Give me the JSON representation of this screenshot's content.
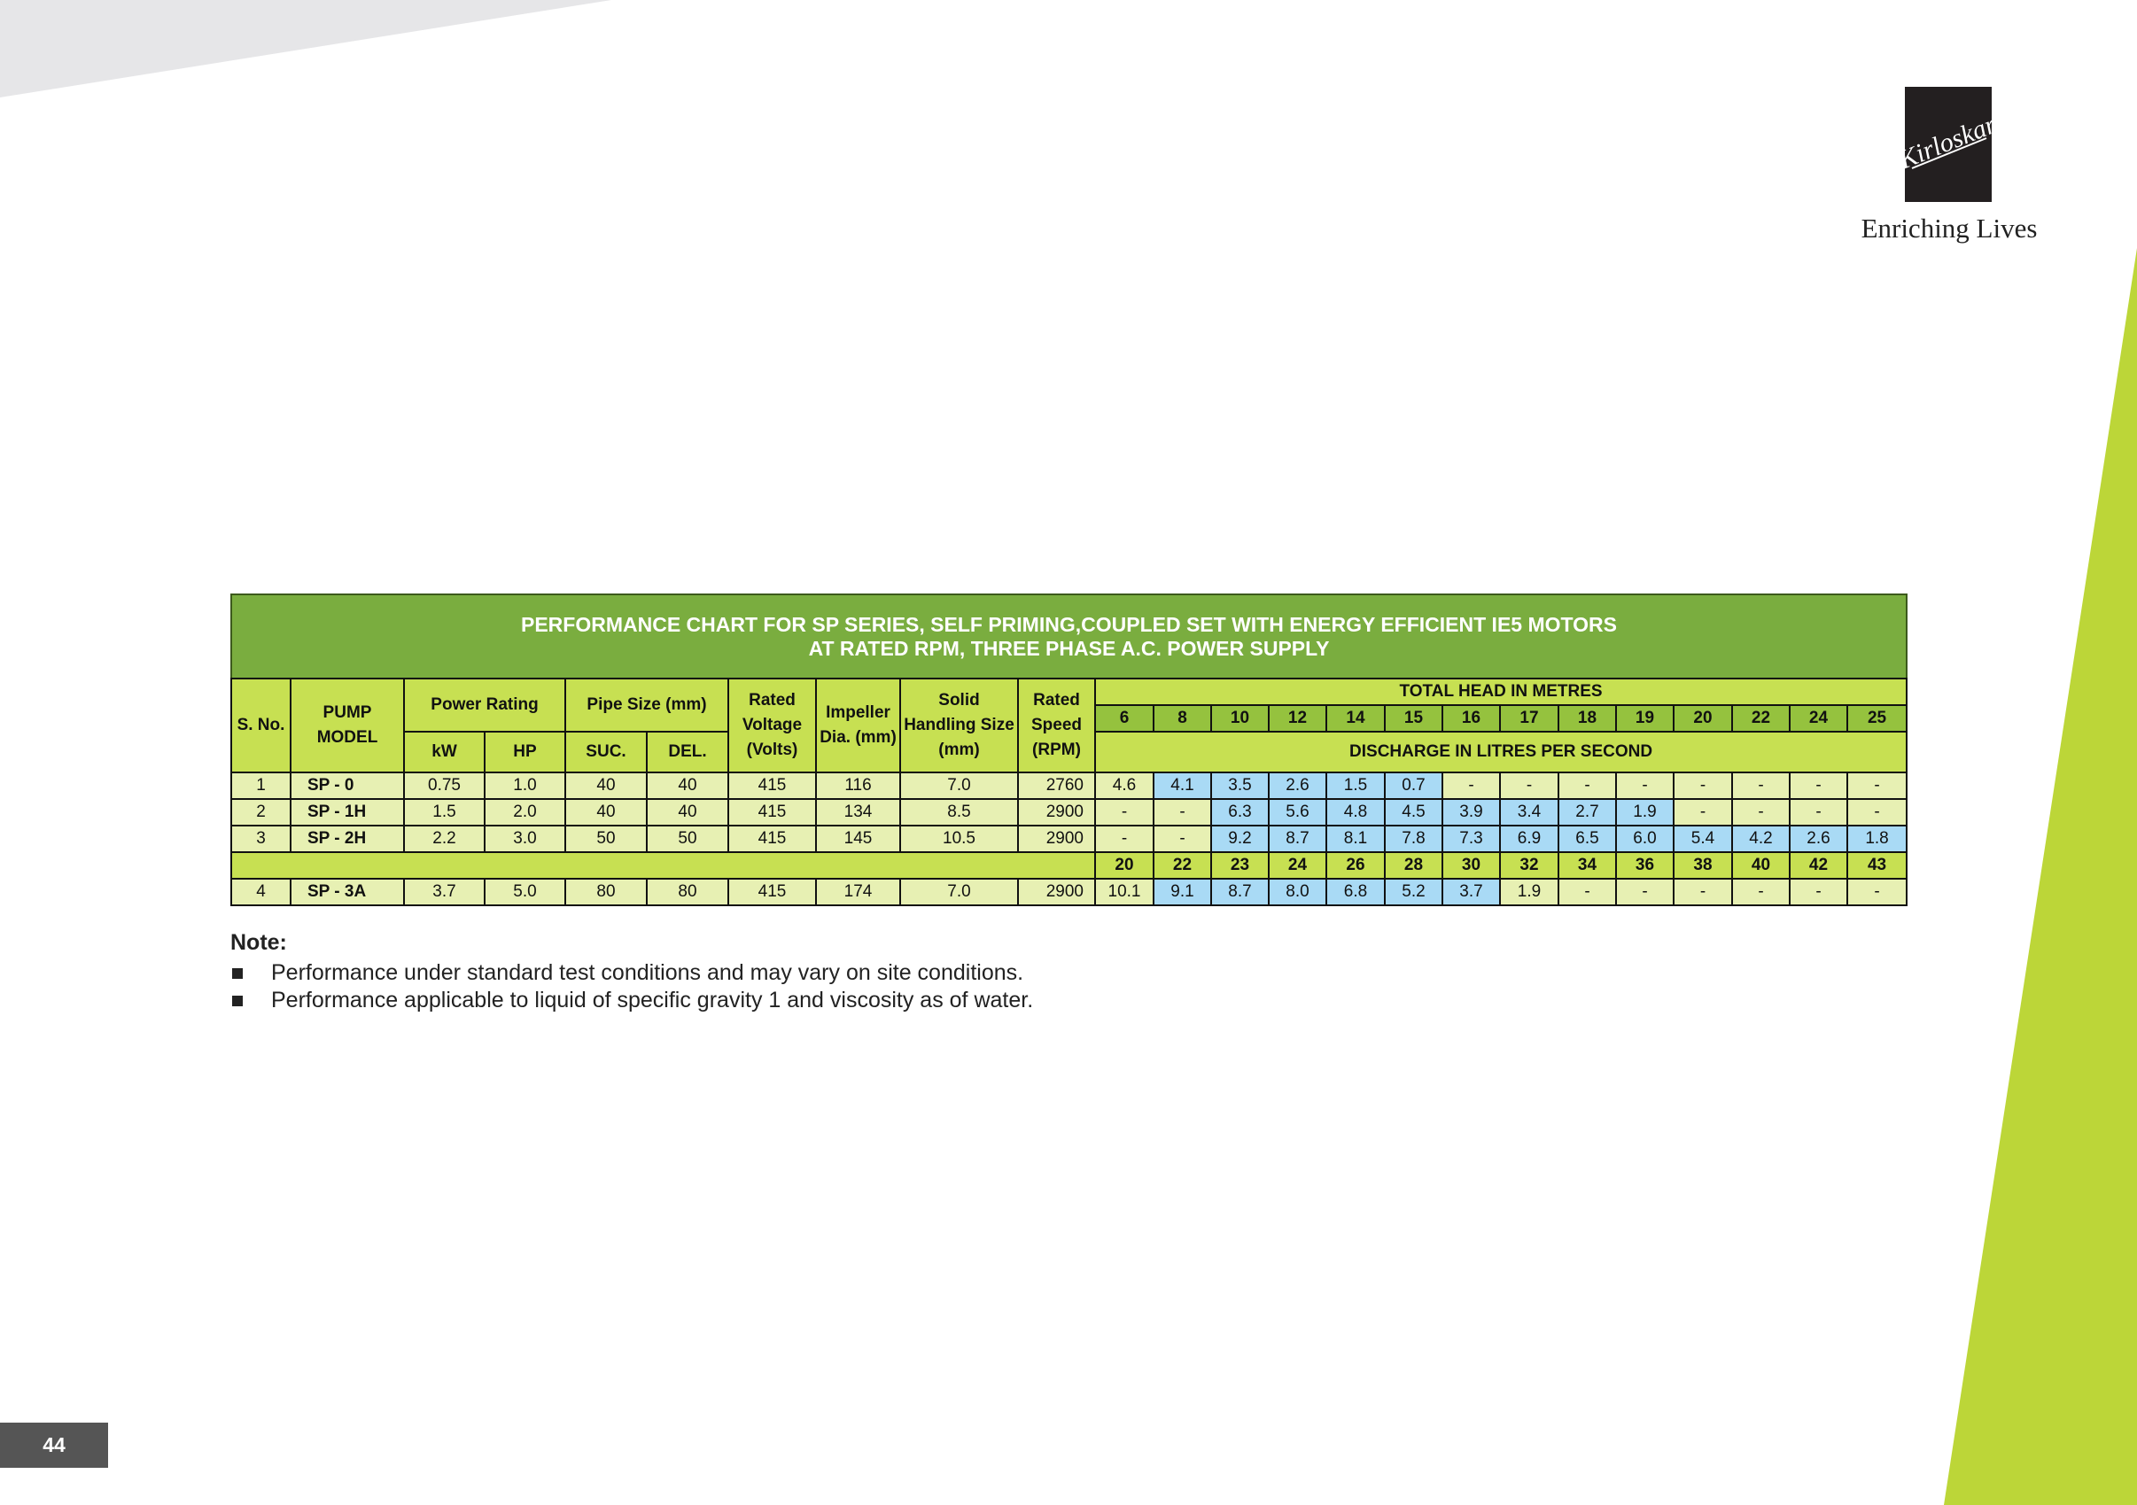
{
  "brand": {
    "logo_text": "Kirloskar",
    "tagline": "Enriching Lives"
  },
  "page_number": "44",
  "colors": {
    "title_green": "#7aad3f",
    "header_lime": "#c7e052",
    "head_green": "#95c23e",
    "cell_cream": "#e7f0b3",
    "highlight_blue": "#a9daf5",
    "deco_lime": "#bcd638"
  },
  "table": {
    "title_line1": "PERFORMANCE CHART FOR SP SERIES, SELF PRIMING,COUPLED SET WITH ENERGY EFFICIENT IE5 MOTORS",
    "title_line2": "AT RATED RPM, THREE PHASE A.C. POWER SUPPLY",
    "headers": {
      "sno": "S. No.",
      "pump_model": "PUMP MODEL",
      "power_rating": "Power Rating",
      "kw": "kW",
      "hp": "HP",
      "pipe_size": "Pipe Size (mm)",
      "suc": "SUC.",
      "del": "DEL.",
      "rated_voltage": "Rated Voltage (Volts)",
      "impeller_dia": "Impeller Dia. (mm)",
      "solid_handling": "Solid Handling Size (mm)",
      "rated_speed": "Rated Speed (RPM)",
      "total_head": "TOTAL HEAD IN METRES",
      "discharge": "DISCHARGE IN LITRES PER SECOND"
    },
    "heads_primary": [
      "6",
      "8",
      "10",
      "12",
      "14",
      "15",
      "16",
      "17",
      "18",
      "19",
      "20",
      "22",
      "24",
      "25"
    ],
    "heads_secondary": [
      "20",
      "22",
      "23",
      "24",
      "26",
      "28",
      "30",
      "32",
      "34",
      "36",
      "38",
      "40",
      "42",
      "43"
    ],
    "rows": [
      {
        "sno": "1",
        "model": "SP - 0",
        "kw": "0.75",
        "hp": "1.0",
        "suc": "40",
        "del": "40",
        "voltage": "415",
        "impeller": "116",
        "solid": "7.0",
        "speed": "2760",
        "discharge": [
          "4.6",
          "4.1",
          "3.5",
          "2.6",
          "1.5",
          "0.7",
          "-",
          "-",
          "-",
          "-",
          "-",
          "-",
          "-",
          "-"
        ]
      },
      {
        "sno": "2",
        "model": "SP - 1H",
        "kw": "1.5",
        "hp": "2.0",
        "suc": "40",
        "del": "40",
        "voltage": "415",
        "impeller": "134",
        "solid": "8.5",
        "speed": "2900",
        "discharge": [
          "-",
          "-",
          "6.3",
          "5.6",
          "4.8",
          "4.5",
          "3.9",
          "3.4",
          "2.7",
          "1.9",
          "-",
          "-",
          "-",
          "-"
        ]
      },
      {
        "sno": "3",
        "model": "SP - 2H",
        "kw": "2.2",
        "hp": "3.0",
        "suc": "50",
        "del": "50",
        "voltage": "415",
        "impeller": "145",
        "solid": "10.5",
        "speed": "2900",
        "discharge": [
          "-",
          "-",
          "9.2",
          "8.7",
          "8.1",
          "7.8",
          "7.3",
          "6.9",
          "6.5",
          "6.0",
          "5.4",
          "4.2",
          "2.6",
          "1.8"
        ]
      },
      {
        "sno": "4",
        "model": "SP - 3A",
        "kw": "3.7",
        "hp": "5.0",
        "suc": "80",
        "del": "80",
        "voltage": "415",
        "impeller": "174",
        "solid": "7.0",
        "speed": "2900",
        "discharge": [
          "10.1",
          "9.1",
          "8.7",
          "8.0",
          "6.8",
          "5.2",
          "3.7",
          "1.9",
          "-",
          "-",
          "-",
          "-",
          "-",
          "-"
        ]
      }
    ]
  },
  "notes": {
    "title": "Note:",
    "items": [
      "Performance under standard test conditions and may vary on site conditions.",
      "Performance applicable to liquid of specific gravity 1 and viscosity as of water."
    ]
  }
}
